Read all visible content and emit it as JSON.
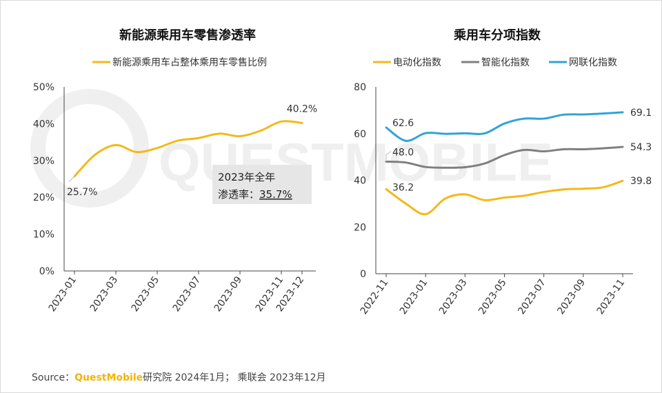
{
  "source": {
    "prefix": "Source：",
    "brand": "QuestMobile",
    "rest": "研究院 2024年1月； 乘联会 2023年12月"
  },
  "watermark": "QUESTMOBILE",
  "colors": {
    "yellow": "#f5b819",
    "gray": "#7f7f7f",
    "blue": "#2fa3d8",
    "axis": "#444444"
  },
  "annotation": {
    "line1": "2023年全年",
    "line2_prefix": "渗透率：",
    "line2_value": "35.7%"
  },
  "chart_data": [
    {
      "type": "line",
      "title": "新能源乘用车零售渗透率",
      "xlabel": "",
      "ylabel": "",
      "x": [
        "2023-01",
        "2023-02",
        "2023-03",
        "2023-04",
        "2023-05",
        "2023-06",
        "2023-07",
        "2023-08",
        "2023-09",
        "2023-10",
        "2023-11",
        "2023-12"
      ],
      "x_tick_labels": [
        "2023-01",
        "2023-03",
        "2023-05",
        "2023-07",
        "2023-09",
        "2023-11",
        "2023-12"
      ],
      "y_tick_labels": [
        "0%",
        "10%",
        "20%",
        "30%",
        "40%",
        "50%"
      ],
      "ylim": [
        0,
        50
      ],
      "grid": false,
      "legend_position": "top",
      "series": [
        {
          "name": "新能源乘用车占整体乘用车零售比例",
          "color": "#f5b819",
          "values": [
            25.7,
            31.6,
            34.2,
            32.3,
            33.4,
            35.4,
            36.1,
            37.3,
            36.6,
            38.1,
            40.6,
            40.2
          ]
        }
      ],
      "data_labels": [
        {
          "index": 0,
          "text": "25.7%"
        },
        {
          "index": 11,
          "text": "40.2%"
        }
      ]
    },
    {
      "type": "line",
      "title": "乘用车分项指数",
      "xlabel": "",
      "ylabel": "",
      "x": [
        "2022-11",
        "2022-12",
        "2023-01",
        "2023-02",
        "2023-03",
        "2023-04",
        "2023-05",
        "2023-06",
        "2023-07",
        "2023-08",
        "2023-09",
        "2023-10",
        "2023-11"
      ],
      "x_tick_labels": [
        "2022-11",
        "2023-01",
        "2023-03",
        "2023-05",
        "2023-07",
        "2023-09",
        "2023-11"
      ],
      "y_tick_labels": [
        "0",
        "20",
        "40",
        "60",
        "80"
      ],
      "ylim": [
        0,
        80
      ],
      "grid": false,
      "legend_position": "top",
      "series": [
        {
          "name": "电动化指数",
          "color": "#f5b819",
          "values": [
            36.2,
            30.0,
            25.5,
            32.2,
            34.0,
            31.5,
            32.6,
            33.4,
            35.0,
            36.1,
            36.4,
            37.0,
            39.8
          ]
        },
        {
          "name": "智能化指数",
          "color": "#7f7f7f",
          "values": [
            48.0,
            47.6,
            45.7,
            45.4,
            45.6,
            47.2,
            50.8,
            53.0,
            52.4,
            53.3,
            53.3,
            53.7,
            54.3
          ]
        },
        {
          "name": "网联化指数",
          "color": "#2fa3d8",
          "values": [
            62.6,
            56.9,
            60.2,
            59.9,
            60.1,
            60.1,
            64.3,
            66.4,
            66.4,
            68.1,
            68.2,
            68.6,
            69.1
          ]
        }
      ],
      "data_labels": [
        {
          "series": 0,
          "index": 0,
          "text": "36.2"
        },
        {
          "series": 0,
          "index": 12,
          "text": "39.8"
        },
        {
          "series": 1,
          "index": 0,
          "text": "48.0"
        },
        {
          "series": 1,
          "index": 12,
          "text": "54.3"
        },
        {
          "series": 2,
          "index": 0,
          "text": "62.6"
        },
        {
          "series": 2,
          "index": 12,
          "text": "69.1"
        }
      ]
    }
  ]
}
